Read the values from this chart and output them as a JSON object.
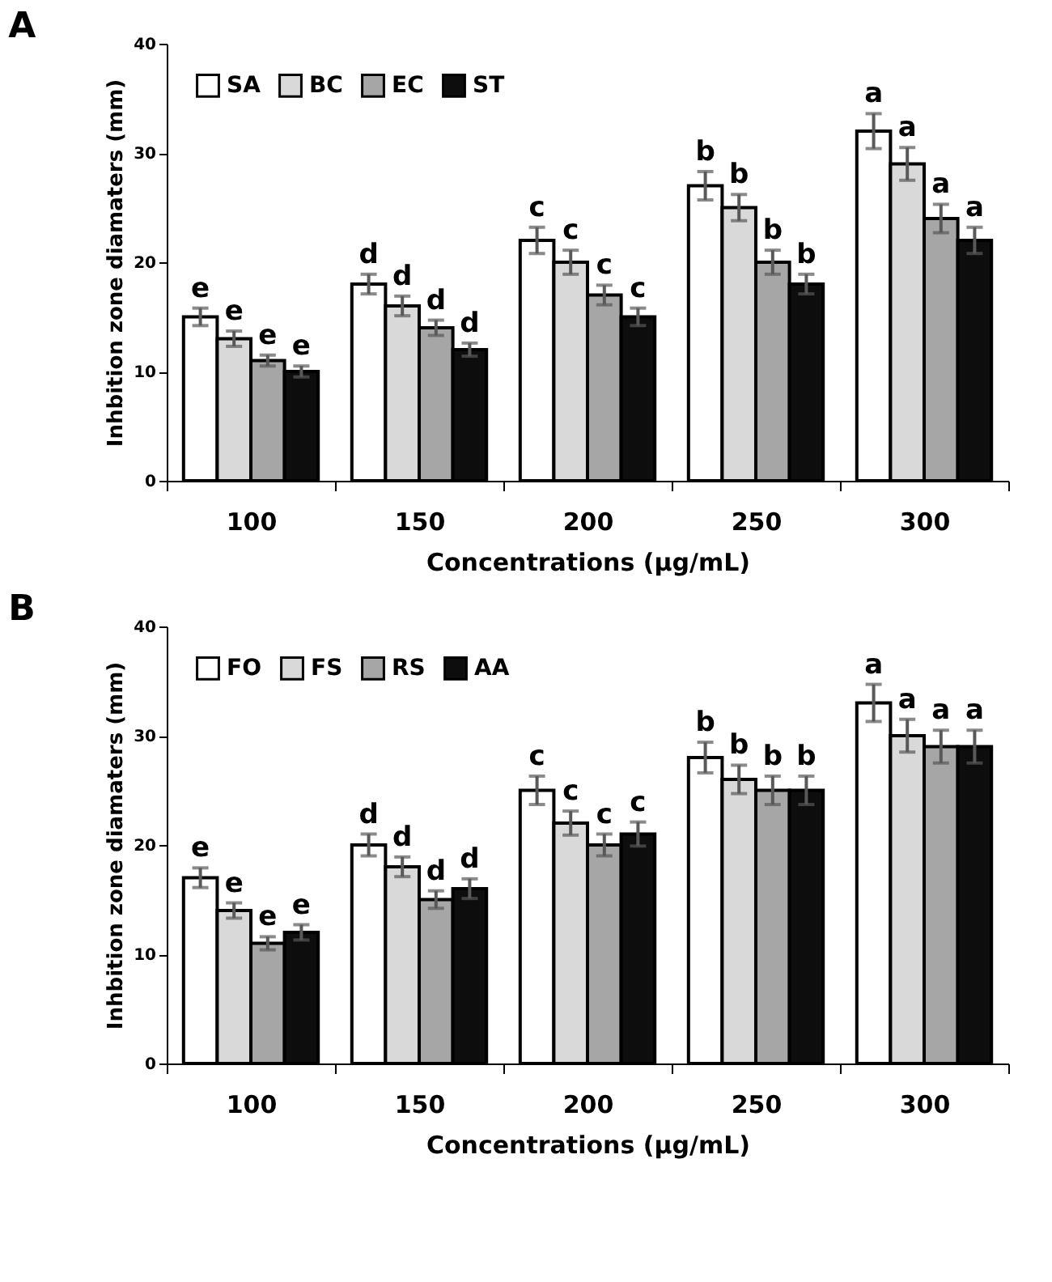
{
  "chart_data": [
    {
      "type": "bar",
      "title": "A",
      "xlabel": "Concentrations (µg/mL)",
      "ylabel": "Inhbition zone diamaters (mm)",
      "categories": [
        "100",
        "150",
        "200",
        "250",
        "300"
      ],
      "ylim": [
        0,
        40
      ],
      "yticks": [
        0,
        10,
        20,
        30,
        40
      ],
      "grid": false,
      "legend": "top left",
      "series": [
        {
          "name": "SA",
          "color": "#ffffff",
          "values": [
            15,
            18,
            22,
            27,
            32
          ],
          "errors": [
            0.8,
            0.9,
            1.2,
            1.3,
            1.6
          ],
          "value_labels": [
            "e",
            "d",
            "c",
            "b",
            "a"
          ]
        },
        {
          "name": "BC",
          "color": "#d9d9d9",
          "values": [
            13,
            16,
            20,
            25,
            29
          ],
          "errors": [
            0.7,
            0.9,
            1.1,
            1.2,
            1.5
          ],
          "value_labels": [
            "e",
            "d",
            "c",
            "b",
            "a"
          ]
        },
        {
          "name": "EC",
          "color": "#a6a6a6",
          "values": [
            11,
            14,
            17,
            20,
            24
          ],
          "errors": [
            0.5,
            0.7,
            0.9,
            1.1,
            1.3
          ],
          "value_labels": [
            "e",
            "d",
            "c",
            "b",
            "a"
          ]
        },
        {
          "name": "ST",
          "color": "#0d0d0d",
          "values": [
            10,
            12,
            15,
            18,
            22
          ],
          "errors": [
            0.5,
            0.6,
            0.8,
            0.9,
            1.2
          ],
          "value_labels": [
            "e",
            "d",
            "c",
            "b",
            "a"
          ]
        }
      ]
    },
    {
      "type": "bar",
      "title": "B",
      "xlabel": "Concentrations (µg/mL)",
      "ylabel": "Inhbition zone diamaters (mm)",
      "categories": [
        "100",
        "150",
        "200",
        "250",
        "300"
      ],
      "ylim": [
        0,
        40
      ],
      "yticks": [
        0,
        10,
        20,
        30,
        40
      ],
      "grid": false,
      "legend": "top left",
      "series": [
        {
          "name": "FO",
          "color": "#ffffff",
          "values": [
            17,
            20,
            25,
            28,
            33
          ],
          "errors": [
            0.9,
            1.0,
            1.3,
            1.4,
            1.7
          ],
          "value_labels": [
            "e",
            "d",
            "c",
            "b",
            "a"
          ]
        },
        {
          "name": "FS",
          "color": "#d9d9d9",
          "values": [
            14,
            18,
            22,
            26,
            30
          ],
          "errors": [
            0.7,
            0.9,
            1.1,
            1.3,
            1.5
          ],
          "value_labels": [
            "e",
            "d",
            "c",
            "b",
            "a"
          ]
        },
        {
          "name": "RS",
          "color": "#a6a6a6",
          "values": [
            11,
            15,
            20,
            25,
            29
          ],
          "errors": [
            0.6,
            0.8,
            1.0,
            1.3,
            1.5
          ],
          "value_labels": [
            "e",
            "d",
            "c",
            "b",
            "a"
          ]
        },
        {
          "name": "AA",
          "color": "#0d0d0d",
          "values": [
            12,
            16,
            21,
            25,
            29
          ],
          "errors": [
            0.7,
            0.9,
            1.1,
            1.3,
            1.5
          ],
          "value_labels": [
            "e",
            "d",
            "c",
            "b",
            "a"
          ]
        }
      ]
    }
  ]
}
